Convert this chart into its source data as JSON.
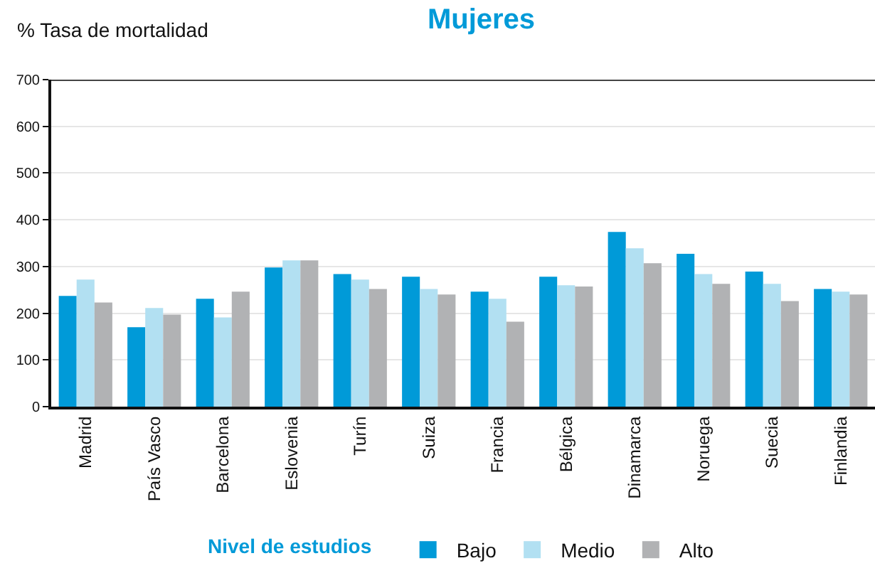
{
  "chart_data": {
    "type": "bar",
    "title": "Mujeres",
    "ylabel": "% Tasa de mortalidad",
    "legend_title": "Nivel de estudios",
    "categories": [
      "Madrid",
      "País Vasco",
      "Barcelona",
      "Eslovenia",
      "Turín",
      "Suiza",
      "Francia",
      "Bélgica",
      "Dinamarca",
      "Noruega",
      "Suecia",
      "Finlandia"
    ],
    "series": [
      {
        "name": "Bajo",
        "color": "#009ad8",
        "values": [
          237,
          170,
          231,
          298,
          284,
          278,
          246,
          278,
          374,
          327,
          289,
          252
        ]
      },
      {
        "name": "Medio",
        "color": "#b2e0f2",
        "values": [
          272,
          211,
          191,
          313,
          272,
          252,
          231,
          260,
          339,
          284,
          263,
          246
        ]
      },
      {
        "name": "Alto",
        "color": "#b1b2b4",
        "values": [
          223,
          197,
          246,
          313,
          252,
          240,
          182,
          257,
          307,
          263,
          226,
          240
        ]
      }
    ],
    "ylim": [
      0,
      700
    ],
    "yticks": [
      0,
      100,
      200,
      300,
      400,
      500,
      600,
      700
    ],
    "grid": "y",
    "legend": "bottom"
  }
}
